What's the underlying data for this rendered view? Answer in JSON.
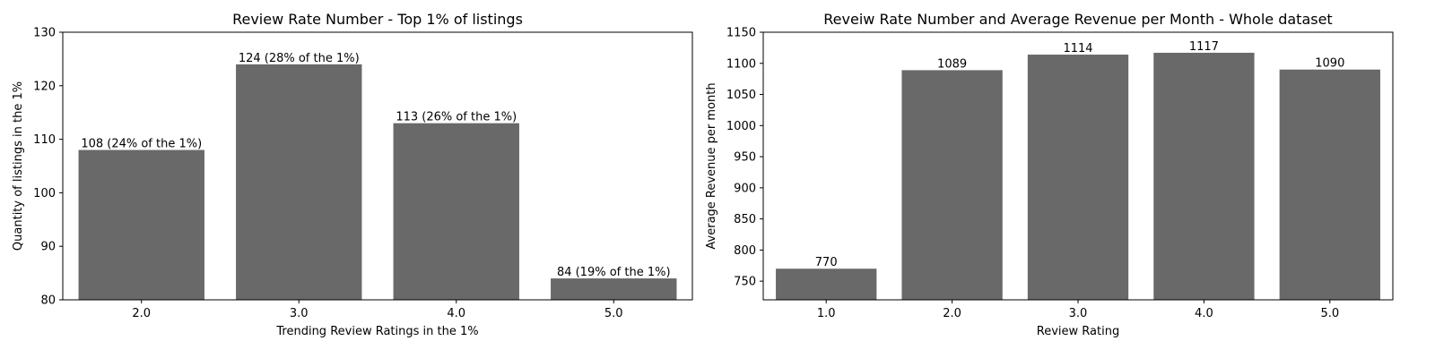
{
  "chart_data": [
    {
      "type": "bar",
      "title": "Review Rate Number - Top 1% of listings",
      "xlabel": "Trending Review Ratings in the 1%",
      "ylabel": "Quantity of listings in the 1%",
      "categories": [
        "2.0",
        "3.0",
        "4.0",
        "5.0"
      ],
      "values": [
        108,
        124,
        113,
        84
      ],
      "data_labels": [
        "108 (24% of the 1%)",
        "124 (28% of the 1%)",
        "113 (26% of the 1%)",
        "84 (19% of the 1%)"
      ],
      "ylim": [
        80,
        130
      ],
      "yticks": [
        80,
        90,
        100,
        110,
        120,
        130
      ],
      "bar_color": "#696969",
      "grid": false
    },
    {
      "type": "bar",
      "title": "Reveiw Rate Number and Average Revenue per Month - Whole dataset",
      "xlabel": "Review Rating",
      "ylabel": "Average Revenue per month",
      "categories": [
        "1.0",
        "2.0",
        "3.0",
        "4.0",
        "5.0"
      ],
      "values": [
        770,
        1089,
        1114,
        1117,
        1090
      ],
      "data_labels": [
        "770",
        "1089",
        "1114",
        "1117",
        "1090"
      ],
      "ylim": [
        720,
        1150
      ],
      "yticks": [
        750,
        800,
        850,
        900,
        950,
        1000,
        1050,
        1100,
        1150
      ],
      "bar_color": "#696969",
      "grid": false
    }
  ]
}
